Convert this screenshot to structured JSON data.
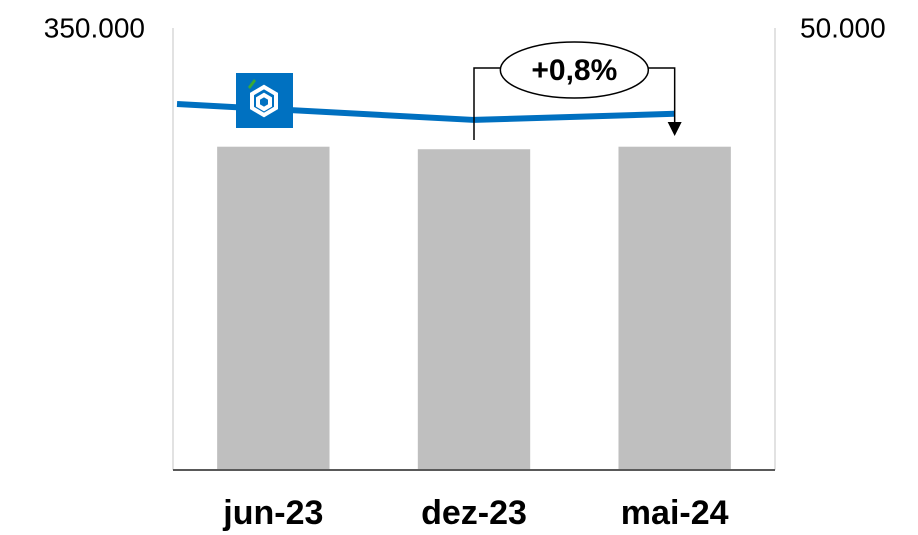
{
  "chart_data": {
    "type": "bar",
    "categories": [
      "jun-23",
      "dez-23",
      "mai-24"
    ],
    "series": [
      {
        "type": "bar",
        "color": "#bfbfbf",
        "values": [
          256000,
          254000,
          256000
        ]
      },
      {
        "type": "line",
        "axis": "y2",
        "color": "#0070c0",
        "values": [
          41400,
          39600,
          40300
        ]
      }
    ],
    "ylim": [
      0,
      350000
    ],
    "yticks": [
      {
        "value": 350000,
        "label": "350.000"
      }
    ],
    "y2lim": [
      0,
      50000
    ],
    "y2ticks": [
      {
        "value": 50000,
        "label": "50.000"
      }
    ],
    "annotation": "+0,8%"
  }
}
